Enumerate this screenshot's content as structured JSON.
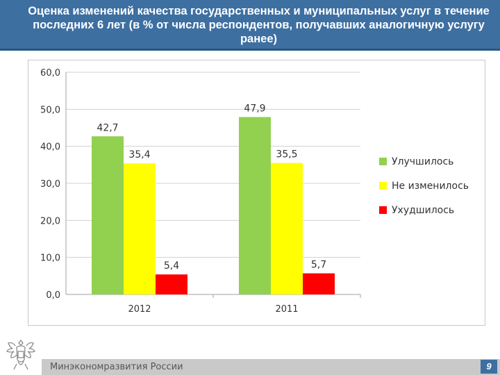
{
  "header": {
    "title": "Оценка изменений качества государственных и муниципальных услуг в течение последних 6 лет (в % от числа респондентов, получавших аналогичную услугу ранее)"
  },
  "footer": {
    "org": "Минэкономразвития России",
    "page": "9"
  },
  "colors": {
    "header": "#3d6fa1",
    "improved": "#92d050",
    "unchanged": "#ffff00",
    "worse": "#ff0000"
  },
  "chart_data": {
    "type": "bar",
    "categories": [
      "2012",
      "2011"
    ],
    "series": [
      {
        "name": "Улучшилось",
        "values": [
          42.7,
          47.9
        ],
        "labels": [
          "42,7",
          "47,9"
        ],
        "color": "#92d050"
      },
      {
        "name": "Не изменилось",
        "values": [
          35.4,
          35.5
        ],
        "labels": [
          "35,4",
          "35,5"
        ],
        "color": "#ffff00"
      },
      {
        "name": "Ухудшилось",
        "values": [
          5.4,
          5.7
        ],
        "labels": [
          "5,4",
          "5,7"
        ],
        "color": "#ff0000"
      }
    ],
    "ylim": [
      0,
      60
    ],
    "yticks": [
      0,
      10,
      20,
      30,
      40,
      50,
      60
    ],
    "ytick_labels": [
      "0,0",
      "10,0",
      "20,0",
      "30,0",
      "40,0",
      "50,0",
      "60,0"
    ],
    "grid": true,
    "legend": "right"
  }
}
